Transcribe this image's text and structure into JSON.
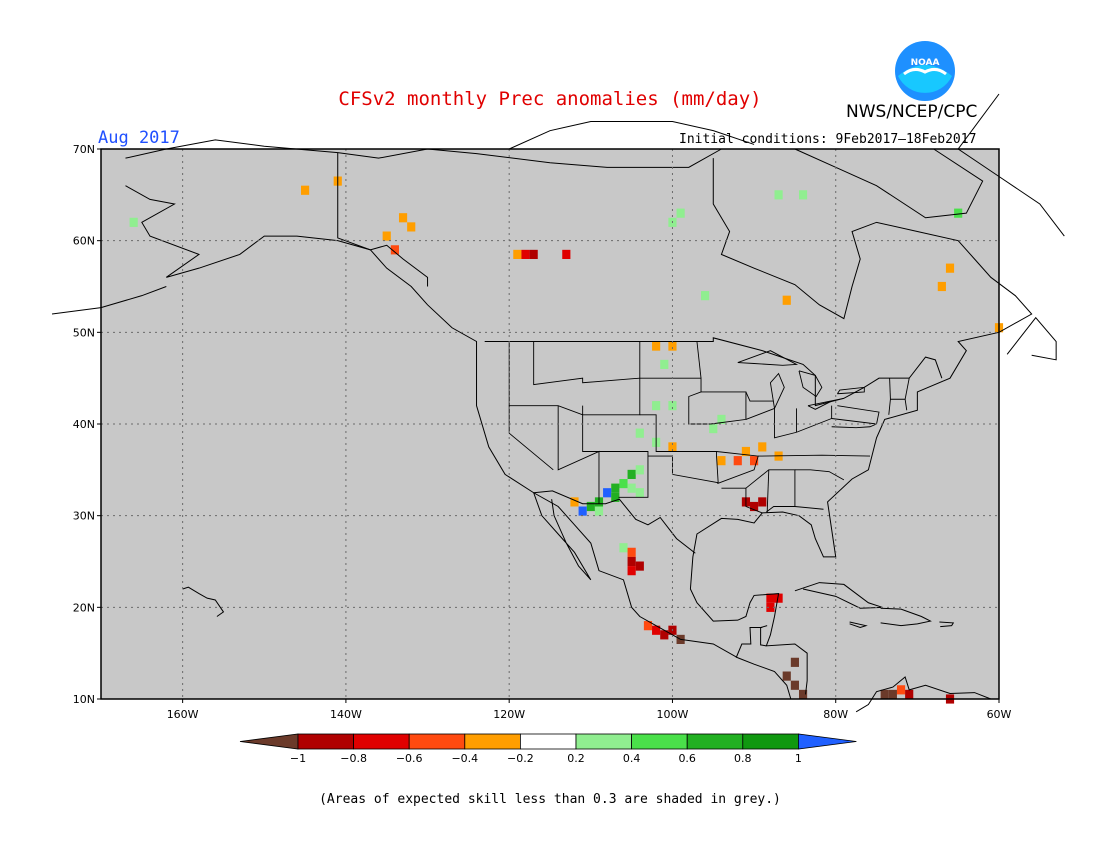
{
  "header": {
    "title": "CFSv2 monthly Prec anomalies (mm/day)",
    "target_month": "Aug 2017",
    "agency": "NWS/NCEP/CPC",
    "logo_text": "NOAA",
    "initial_conditions": "Initial conditions: 9Feb2017–18Feb2017"
  },
  "map": {
    "lat_labels": [
      "70N",
      "60N",
      "50N",
      "40N",
      "30N",
      "20N",
      "10N"
    ],
    "lon_labels": [
      "160W",
      "140W",
      "120W",
      "100W",
      "80W",
      "60W"
    ],
    "background_color": "#c8c8c8",
    "anomaly_cells": [
      {
        "lon": -145,
        "lat": 65.5,
        "v": -0.3
      },
      {
        "lon": -141,
        "lat": 66.5,
        "v": -0.3
      },
      {
        "lon": -133,
        "lat": 62.5,
        "v": -0.3
      },
      {
        "lon": -132,
        "lat": 61.5,
        "v": -0.3
      },
      {
        "lon": -135,
        "lat": 60.5,
        "v": -0.3
      },
      {
        "lon": -134,
        "lat": 59,
        "v": -0.4
      },
      {
        "lon": -119,
        "lat": 58.5,
        "v": -0.3
      },
      {
        "lon": -118,
        "lat": 58.5,
        "v": -0.6
      },
      {
        "lon": -117,
        "lat": 58.5,
        "v": -0.8
      },
      {
        "lon": -113,
        "lat": 58.5,
        "v": -0.6
      },
      {
        "lon": -100,
        "lat": 62,
        "v": 0.3
      },
      {
        "lon": -99,
        "lat": 63,
        "v": 0.3
      },
      {
        "lon": -96,
        "lat": 54,
        "v": 0.3
      },
      {
        "lon": -166,
        "lat": 62,
        "v": 0.4
      },
      {
        "lon": -65,
        "lat": 63,
        "v": 0.5
      },
      {
        "lon": -87,
        "lat": 65,
        "v": 0.3
      },
      {
        "lon": -84,
        "lat": 65,
        "v": 0.3
      },
      {
        "lon": -86,
        "lat": 53.5,
        "v": -0.3
      },
      {
        "lon": -66,
        "lat": 57,
        "v": -0.3
      },
      {
        "lon": -67,
        "lat": 55,
        "v": -0.3
      },
      {
        "lon": -60,
        "lat": 50.5,
        "v": -0.3
      },
      {
        "lon": -102,
        "lat": 48.5,
        "v": -0.3
      },
      {
        "lon": -100,
        "lat": 48.5,
        "v": -0.3
      },
      {
        "lon": -101,
        "lat": 46.5,
        "v": 0.3
      },
      {
        "lon": -102,
        "lat": 42,
        "v": 0.4
      },
      {
        "lon": -100,
        "lat": 42,
        "v": 0.4
      },
      {
        "lon": -95,
        "lat": 39.5,
        "v": 0.3
      },
      {
        "lon": -94,
        "lat": 40.5,
        "v": 0.3
      },
      {
        "lon": -104,
        "lat": 39,
        "v": 0.3
      },
      {
        "lon": -102,
        "lat": 38,
        "v": 0.4
      },
      {
        "lon": -100,
        "lat": 37.5,
        "v": -0.3
      },
      {
        "lon": -91,
        "lat": 37,
        "v": -0.3
      },
      {
        "lon": -92,
        "lat": 36,
        "v": -0.4
      },
      {
        "lon": -90,
        "lat": 36,
        "v": -0.4
      },
      {
        "lon": -89,
        "lat": 37.5,
        "v": -0.3
      },
      {
        "lon": -87,
        "lat": 36.5,
        "v": -0.3
      },
      {
        "lon": -94,
        "lat": 36,
        "v": -0.3
      },
      {
        "lon": -105,
        "lat": 34.5,
        "v": 0.7
      },
      {
        "lon": -104,
        "lat": 35,
        "v": 0.4
      },
      {
        "lon": -106,
        "lat": 33.5,
        "v": 0.5
      },
      {
        "lon": -107,
        "lat": 33,
        "v": 0.7
      },
      {
        "lon": -105,
        "lat": 33,
        "v": 0.4
      },
      {
        "lon": -108,
        "lat": 32.5,
        "v": 1.1
      },
      {
        "lon": -107,
        "lat": 32,
        "v": 0.8
      },
      {
        "lon": -109,
        "lat": 31.5,
        "v": 0.8
      },
      {
        "lon": -110,
        "lat": 31,
        "v": 0.7
      },
      {
        "lon": -111,
        "lat": 30.5,
        "v": 1.1
      },
      {
        "lon": -109,
        "lat": 30.5,
        "v": 0.4
      },
      {
        "lon": -104,
        "lat": 32.5,
        "v": 0.4
      },
      {
        "lon": -112,
        "lat": 31.5,
        "v": -0.3
      },
      {
        "lon": -91,
        "lat": 31.5,
        "v": -0.8
      },
      {
        "lon": -90,
        "lat": 31,
        "v": -0.8
      },
      {
        "lon": -89,
        "lat": 31.5,
        "v": -0.8
      },
      {
        "lon": -106,
        "lat": 26.5,
        "v": 0.3
      },
      {
        "lon": -105,
        "lat": 26,
        "v": -0.4
      },
      {
        "lon": -105,
        "lat": 25,
        "v": -0.8
      },
      {
        "lon": -104,
        "lat": 24.5,
        "v": -0.8
      },
      {
        "lon": -105,
        "lat": 24,
        "v": -0.6
      },
      {
        "lon": -88,
        "lat": 21,
        "v": -0.6
      },
      {
        "lon": -87,
        "lat": 21,
        "v": -0.6
      },
      {
        "lon": -88,
        "lat": 20,
        "v": -0.6
      },
      {
        "lon": -103,
        "lat": 18,
        "v": -0.4
      },
      {
        "lon": -102,
        "lat": 17.5,
        "v": -0.6
      },
      {
        "lon": -101,
        "lat": 17,
        "v": -0.8
      },
      {
        "lon": -100,
        "lat": 17.5,
        "v": -0.8
      },
      {
        "lon": -99,
        "lat": 16.5,
        "v": -1.1
      },
      {
        "lon": -85,
        "lat": 14,
        "v": -1.1
      },
      {
        "lon": -86,
        "lat": 12.5,
        "v": -1.1
      },
      {
        "lon": -85,
        "lat": 11.5,
        "v": -1.1
      },
      {
        "lon": -84,
        "lat": 10.5,
        "v": -1.1
      },
      {
        "lon": -74,
        "lat": 10.5,
        "v": -1.1
      },
      {
        "lon": -73,
        "lat": 10.5,
        "v": -1.1
      },
      {
        "lon": -72,
        "lat": 11,
        "v": -0.4
      },
      {
        "lon": -71,
        "lat": 10.5,
        "v": -0.8
      },
      {
        "lon": -66,
        "lat": 10,
        "v": -0.8
      }
    ]
  },
  "colorbar": {
    "tick_labels": [
      "−1",
      "−0.8",
      "−0.6",
      "−0.4",
      "−0.2",
      "0.2",
      "0.4",
      "0.6",
      "0.8",
      "1"
    ],
    "colors": [
      "#6b3a2a",
      "#b00000",
      "#e00000",
      "#ff4a10",
      "#ff9e00",
      "#ffffff",
      "#90ee90",
      "#4ae04a",
      "#22b022",
      "#109810",
      "#2060ff"
    ]
  },
  "footer": {
    "skill_note": "(Areas of expected skill less than 0.3 are shaded in grey.)"
  }
}
